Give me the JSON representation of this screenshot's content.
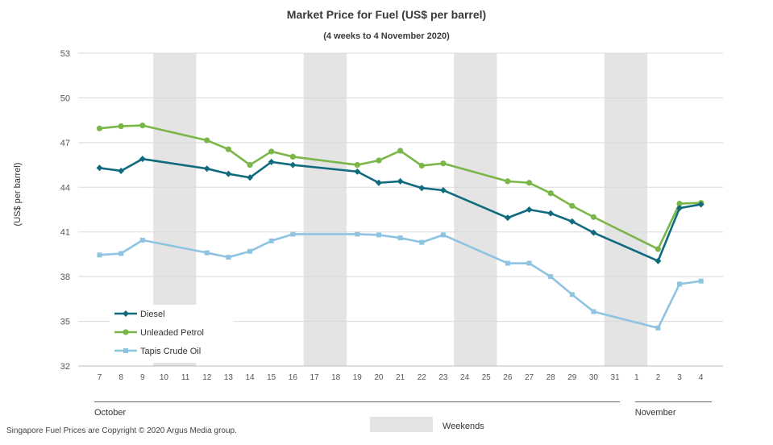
{
  "chart_data": {
    "type": "line",
    "title": "Market Price for Fuel (US$ per barrel)",
    "subtitle": "(4 weeks to 4 November 2020)",
    "ylabel": "(US$ per barrel)",
    "xlabel": "",
    "ylim": [
      32,
      53
    ],
    "yticks": [
      32,
      35,
      38,
      41,
      44,
      47,
      50,
      53
    ],
    "grid": true,
    "legend_position": "bottom-left",
    "categories": [
      "7",
      "8",
      "9",
      "10",
      "11",
      "12",
      "13",
      "14",
      "15",
      "16",
      "17",
      "18",
      "19",
      "20",
      "21",
      "22",
      "23",
      "24",
      "25",
      "26",
      "27",
      "28",
      "29",
      "30",
      "31",
      "1",
      "2",
      "3",
      "4"
    ],
    "months": [
      {
        "label": "October",
        "from": 0,
        "to": 24
      },
      {
        "label": "November",
        "from": 25,
        "to": 28
      }
    ],
    "weekends": [
      [
        3,
        4
      ],
      [
        10,
        11
      ],
      [
        17,
        18
      ],
      [
        24,
        25
      ]
    ],
    "weekends_label": "Weekends",
    "series": [
      {
        "name": "Diesel",
        "color": "#0f6b7d",
        "marker": "diamond",
        "values": [
          45.3,
          45.1,
          45.9,
          null,
          null,
          45.25,
          44.9,
          44.65,
          45.7,
          45.5,
          null,
          null,
          45.05,
          44.3,
          44.4,
          43.95,
          43.8,
          null,
          null,
          41.95,
          42.5,
          42.25,
          41.7,
          40.95,
          null,
          null,
          39.05,
          42.6,
          42.85
        ]
      },
      {
        "name": "Unleaded Petrol",
        "color": "#7ab648",
        "marker": "circle",
        "values": [
          47.95,
          48.1,
          48.15,
          null,
          null,
          47.15,
          46.55,
          45.5,
          46.4,
          46.05,
          null,
          null,
          45.5,
          45.8,
          46.45,
          45.45,
          45.6,
          null,
          null,
          44.4,
          44.3,
          43.6,
          42.75,
          42.0,
          null,
          null,
          39.85,
          42.9,
          42.95
        ]
      },
      {
        "name": "Tapis Crude Oil",
        "color": "#8ec3e2",
        "marker": "square",
        "values": [
          39.45,
          39.55,
          40.45,
          null,
          null,
          39.6,
          39.3,
          39.7,
          40.4,
          40.85,
          null,
          null,
          40.85,
          40.8,
          40.6,
          40.3,
          40.8,
          null,
          null,
          38.9,
          38.9,
          38.0,
          36.8,
          35.65,
          null,
          null,
          34.55,
          37.5,
          37.7
        ]
      }
    ]
  },
  "footer": {
    "copyright": "Singapore Fuel Prices are Copyright © 2020 Argus Media group."
  }
}
